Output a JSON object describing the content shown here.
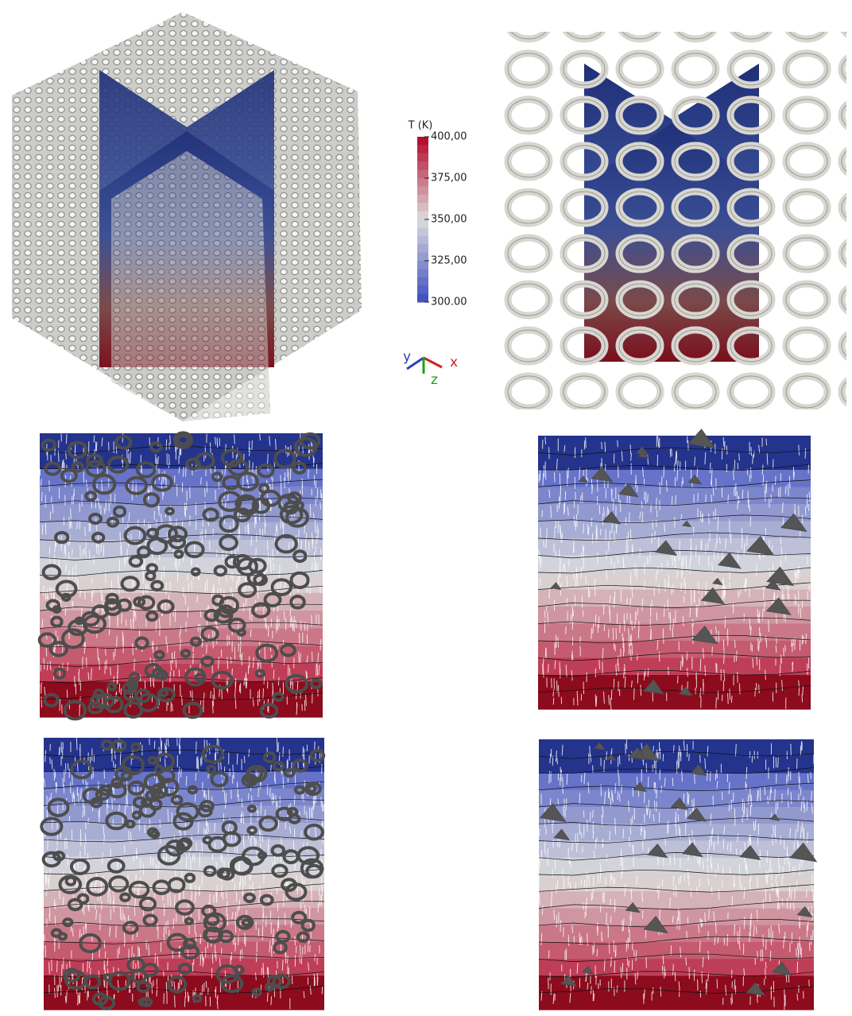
{
  "colorbar": {
    "title": "T (K)",
    "range": [
      300,
      400
    ],
    "ticks": [
      {
        "value": 400,
        "label": "400,00"
      },
      {
        "value": 375,
        "label": "375,00"
      },
      {
        "value": 350,
        "label": "350,00"
      },
      {
        "value": 325,
        "label": "325,00"
      },
      {
        "value": 300,
        "label": "300.00"
      }
    ]
  },
  "axes_triad": {
    "x": "x",
    "y": "y",
    "z": "z"
  }
}
